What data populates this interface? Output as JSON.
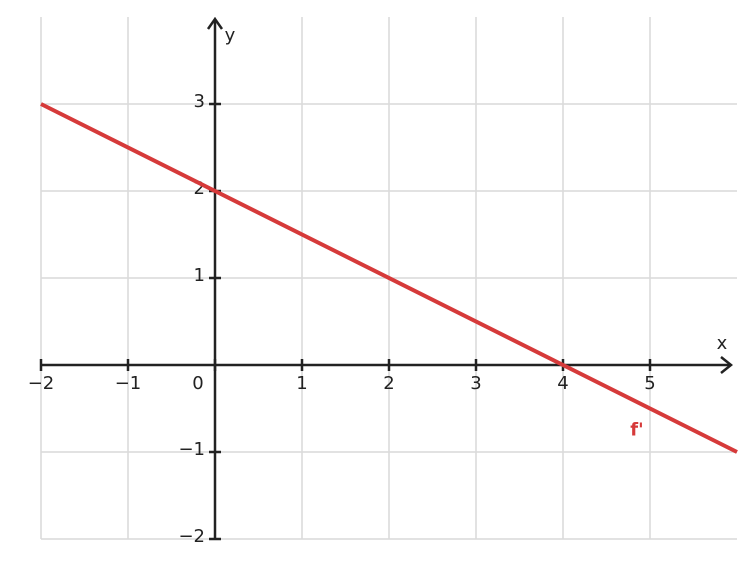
{
  "chart_data": {
    "type": "line",
    "x_label": "x",
    "y_label": "y",
    "xlim": [
      -2,
      6
    ],
    "ylim": [
      -2,
      4
    ],
    "xticks": [
      {
        "value": -2,
        "label": "−2"
      },
      {
        "value": -1,
        "label": "−1"
      },
      0,
      1,
      2,
      3,
      4,
      5
    ],
    "yticks": [
      {
        "value": -2,
        "label": "−2"
      },
      {
        "value": -1,
        "label": "−1"
      },
      1,
      2,
      3
    ],
    "grid": true,
    "series": [
      {
        "name": "f'",
        "color": "#d63a3a",
        "x": [
          -2,
          6
        ],
        "values": [
          3,
          -1
        ]
      }
    ]
  }
}
